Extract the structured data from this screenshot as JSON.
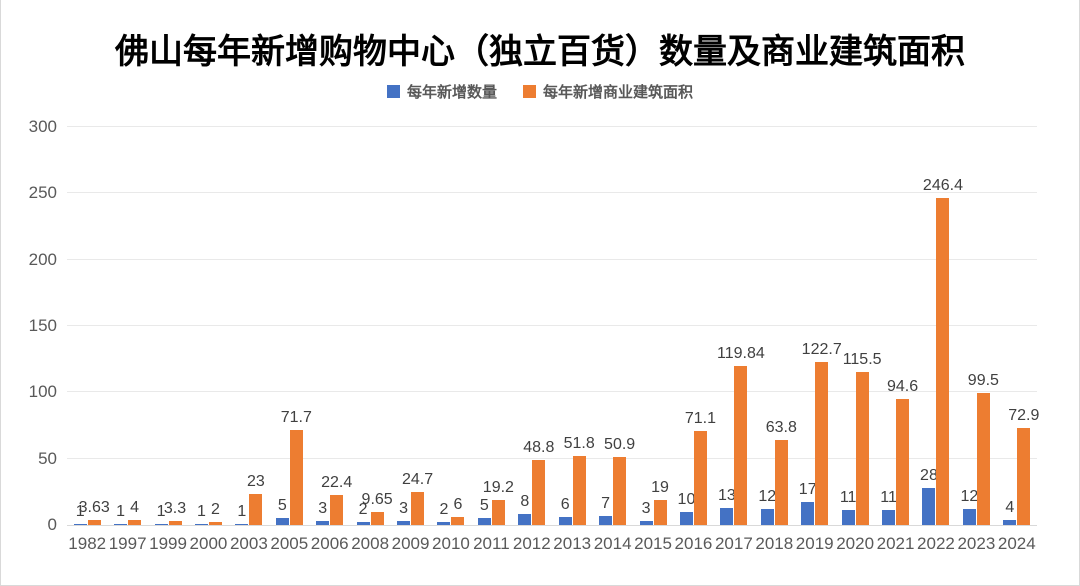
{
  "chart_data": {
    "type": "bar",
    "title": "佛山每年新增购物中心（独立百货）数量及商业建筑面积",
    "xlabel": "",
    "ylabel": "",
    "ylim": [
      0,
      300
    ],
    "y_ticks": [
      0,
      50,
      100,
      150,
      200,
      250,
      300
    ],
    "grid": true,
    "legend_position": "top",
    "data_labels": true,
    "categories": [
      "1982",
      "1997",
      "1999",
      "2000",
      "2003",
      "2005",
      "2006",
      "2008",
      "2009",
      "2010",
      "2011",
      "2012",
      "2013",
      "2014",
      "2015",
      "2016",
      "2017",
      "2018",
      "2019",
      "2020",
      "2021",
      "2022",
      "2023",
      "2024"
    ],
    "series": [
      {
        "name": "每年新增数量",
        "key": "count",
        "color": "#4472C4",
        "values": [
          1,
          1,
          1,
          1,
          1,
          5,
          3,
          2,
          3,
          2,
          5,
          8,
          6,
          7,
          3,
          10,
          13,
          12,
          17,
          11,
          11,
          28,
          12,
          4
        ]
      },
      {
        "name": "每年新增商业建筑面积",
        "key": "area",
        "color": "#ED7D31",
        "values": [
          3.63,
          4,
          3.3,
          2,
          23,
          71.7,
          22.4,
          9.65,
          24.7,
          6,
          19.2,
          48.8,
          51.8,
          50.9,
          19,
          71.1,
          119.84,
          63.8,
          122.7,
          115.5,
          94.6,
          246.4,
          99.5,
          72.9
        ]
      }
    ]
  },
  "colors": {
    "series_count": "#4472C4",
    "series_area": "#ED7D31",
    "title_text": "#000000",
    "tick_text": "#595959",
    "data_label_text": "#404040",
    "gridline": "#E9E9E9",
    "axis_line": "#D9D9D9",
    "frame_border": "#D9D9D9"
  }
}
